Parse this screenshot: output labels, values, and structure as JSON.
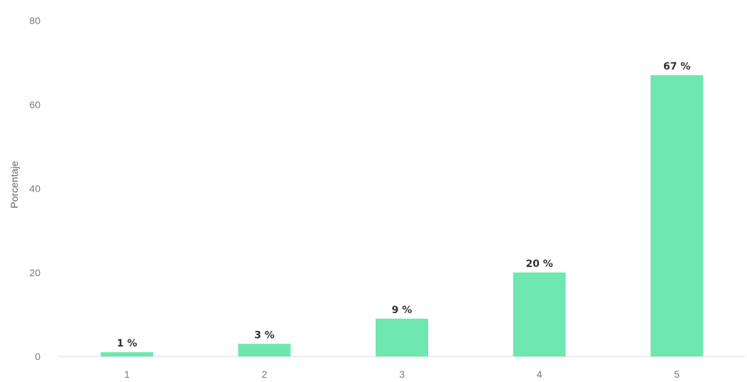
{
  "chart_data": {
    "type": "bar",
    "categories": [
      "1",
      "2",
      "3",
      "4",
      "5"
    ],
    "values": [
      1,
      3,
      9,
      20,
      67
    ],
    "value_labels": [
      "1 %",
      "3 %",
      "9 %",
      "20 %",
      "67 %"
    ],
    "title": "",
    "xlabel": "",
    "ylabel": "Porcentaje",
    "ylim": [
      0,
      80
    ],
    "yticks": [
      "0",
      "20",
      "40",
      "60",
      "80"
    ],
    "grid": false,
    "legend": "none",
    "bar_color": "#6ee7b0",
    "axis_color": "#d9d9d9"
  }
}
